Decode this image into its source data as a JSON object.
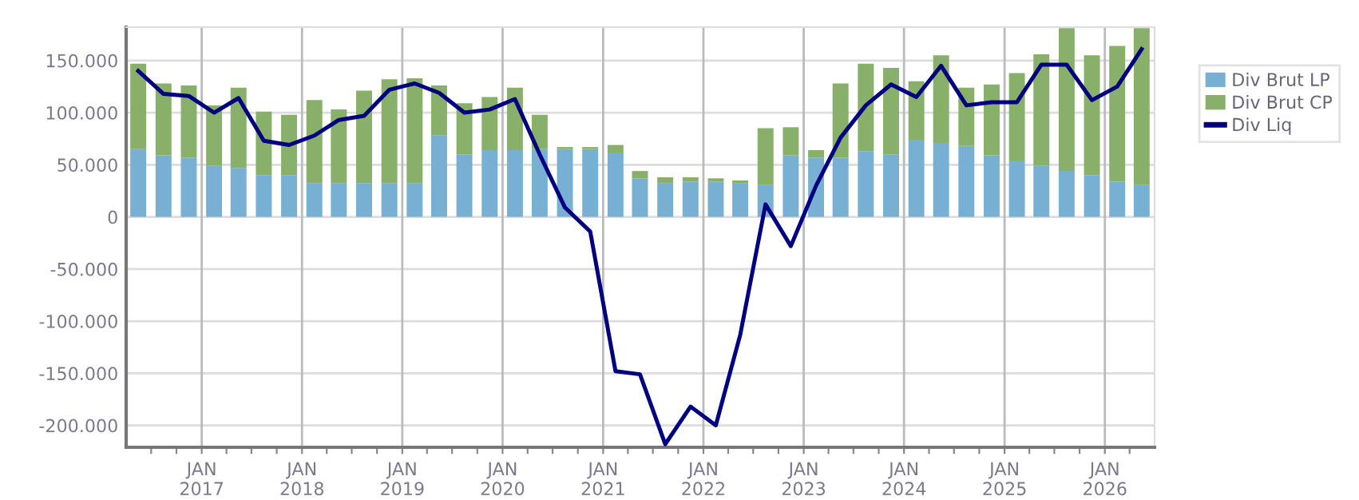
{
  "chart_data": {
    "type": "bar",
    "stacked": true,
    "x": [
      "2016-05-15",
      "2016-08-15",
      "2016-11-15",
      "2017-02-15",
      "2017-05-15",
      "2017-08-15",
      "2017-11-15",
      "2018-02-15",
      "2018-05-15",
      "2018-08-15",
      "2018-11-15",
      "2019-02-15",
      "2019-05-15",
      "2019-08-15",
      "2019-11-15",
      "2020-02-15",
      "2020-05-15",
      "2020-08-15",
      "2020-11-15",
      "2021-02-15",
      "2021-05-15",
      "2021-08-15",
      "2021-11-15",
      "2022-02-15",
      "2022-05-15",
      "2022-08-15",
      "2022-11-15",
      "2023-02-15",
      "2023-05-15",
      "2023-08-15",
      "2023-11-15",
      "2024-02-15",
      "2024-05-15",
      "2024-08-15",
      "2024-11-15",
      "2025-02-15",
      "2025-05-15",
      "2025-08-15",
      "2025-11-15",
      "2026-02-15",
      "2026-05-15"
    ],
    "series": [
      {
        "name": "Div Brut LP",
        "color": "#77b0d3",
        "values": [
          65000,
          59000,
          57000,
          49000,
          47000,
          40000,
          40000,
          32000,
          32000,
          32000,
          32000,
          32000,
          78000,
          60000,
          64000,
          64000,
          65000,
          65000,
          65000,
          61000,
          37000,
          32000,
          34000,
          34000,
          32000,
          31000,
          59000,
          57000,
          57000,
          63000,
          60000,
          74000,
          71000,
          68000,
          59000,
          54000,
          49000,
          44000,
          40000,
          34000,
          31000
        ]
      },
      {
        "name": "Div Brut CP",
        "color": "#88b06a",
        "values": [
          82000,
          69000,
          69000,
          58000,
          77000,
          61000,
          58000,
          80000,
          71000,
          89000,
          100000,
          101000,
          48000,
          49000,
          51000,
          60000,
          33000,
          2000,
          2000,
          8000,
          7000,
          6000,
          4000,
          3000,
          3000,
          54000,
          27000,
          7000,
          71000,
          84000,
          83000,
          56000,
          84000,
          56000,
          68000,
          84000,
          107000,
          137000,
          115000,
          130000,
          150000
        ]
      },
      {
        "name": "Div Liq",
        "type": "line",
        "color": "#000080",
        "values": [
          140000,
          118000,
          116000,
          100000,
          114000,
          73000,
          69000,
          78000,
          93000,
          97000,
          122000,
          128000,
          119000,
          100000,
          103000,
          113000,
          60000,
          9000,
          -14000,
          -148000,
          -151000,
          -218000,
          -182000,
          -200000,
          -113000,
          12000,
          -28000,
          30000,
          76000,
          107000,
          127000,
          115000,
          145000,
          107000,
          110000,
          110000,
          146000,
          146000,
          112000,
          125000,
          161000
        ]
      }
    ],
    "xlim": [
      "2016-04-01",
      "2026-07-01"
    ],
    "xticks": [
      {
        "value": "2016-07-01",
        "label": null
      },
      {
        "value": "2016-10-01",
        "label": null
      },
      {
        "value": "2017-01-01",
        "label": "JAN\n2017"
      },
      {
        "value": "2017-04-01",
        "label": null
      },
      {
        "value": "2017-07-01",
        "label": null
      },
      {
        "value": "2017-10-01",
        "label": null
      },
      {
        "value": "2018-01-01",
        "label": "JAN\n2018"
      },
      {
        "value": "2018-04-01",
        "label": null
      },
      {
        "value": "2018-07-01",
        "label": null
      },
      {
        "value": "2018-10-01",
        "label": null
      },
      {
        "value": "2019-01-01",
        "label": "JAN\n2019"
      },
      {
        "value": "2019-04-01",
        "label": null
      },
      {
        "value": "2019-07-01",
        "label": null
      },
      {
        "value": "2019-10-01",
        "label": null
      },
      {
        "value": "2020-01-01",
        "label": "JAN\n2020"
      },
      {
        "value": "2020-04-01",
        "label": null
      },
      {
        "value": "2020-07-01",
        "label": null
      },
      {
        "value": "2020-10-01",
        "label": null
      },
      {
        "value": "2021-01-01",
        "label": "JAN\n2021"
      },
      {
        "value": "2021-04-01",
        "label": null
      },
      {
        "value": "2021-07-01",
        "label": null
      },
      {
        "value": "2021-10-01",
        "label": null
      },
      {
        "value": "2022-01-01",
        "label": "JAN\n2022"
      },
      {
        "value": "2022-04-01",
        "label": null
      },
      {
        "value": "2022-07-01",
        "label": null
      },
      {
        "value": "2022-10-01",
        "label": null
      },
      {
        "value": "2023-01-01",
        "label": "JAN\n2023"
      },
      {
        "value": "2023-04-01",
        "label": null
      },
      {
        "value": "2023-07-01",
        "label": null
      },
      {
        "value": "2023-10-01",
        "label": null
      },
      {
        "value": "2024-01-01",
        "label": "JAN\n2024"
      },
      {
        "value": "2024-04-01",
        "label": null
      },
      {
        "value": "2024-07-01",
        "label": null
      },
      {
        "value": "2024-10-01",
        "label": null
      },
      {
        "value": "2025-01-01",
        "label": "JAN\n2025"
      },
      {
        "value": "2025-04-01",
        "label": null
      },
      {
        "value": "2025-07-01",
        "label": null
      },
      {
        "value": "2025-10-01",
        "label": null
      },
      {
        "value": "2026-01-01",
        "label": "JAN\n2026"
      },
      {
        "value": "2026-04-01",
        "label": null
      }
    ],
    "ylim": [
      -221000,
      182000
    ],
    "yticks": [
      {
        "value": -200000,
        "label": "-200.000"
      },
      {
        "value": -150000,
        "label": "-150.000"
      },
      {
        "value": -100000,
        "label": "-100.000"
      },
      {
        "value": -50000,
        "label": "-50.000"
      },
      {
        "value": 0,
        "label": "0"
      },
      {
        "value": 50000,
        "label": "50.000"
      },
      {
        "value": 100000,
        "label": "100.000"
      },
      {
        "value": 150000,
        "label": "150.000"
      }
    ],
    "grid": true,
    "legend": "top right"
  }
}
